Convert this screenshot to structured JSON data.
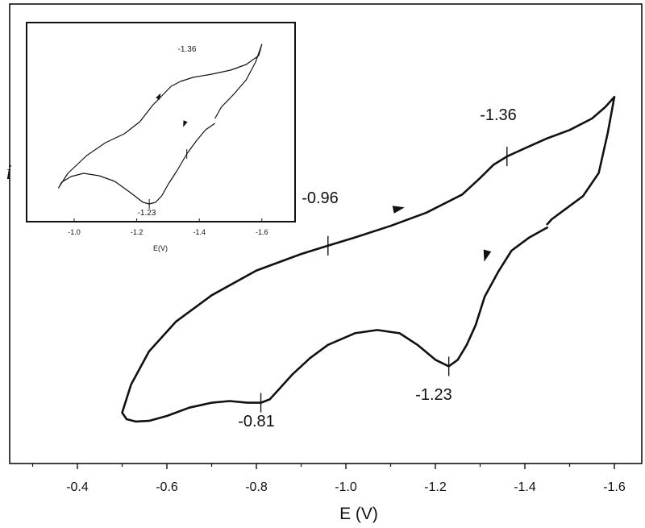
{
  "chart_data": [
    {
      "type": "line",
      "xlabel": "E (V)",
      "ylabel": "i",
      "x_axis_reversed": true,
      "xlim": [
        -0.25,
        -1.75
      ],
      "ylim": [
        0,
        100
      ],
      "y_ticks_shown": false,
      "x_ticks": [
        -0.4,
        -0.6,
        -0.8,
        -1.0,
        -1.2,
        -1.4,
        -1.6
      ],
      "x_tick_labels": [
        "-0.4",
        "-0.6",
        "-0.8",
        "-1.0",
        "-1.2",
        "-1.4",
        "-1.6"
      ],
      "line_color": "#111111",
      "series": [
        {
          "x": [
            -1.45,
            -1.41,
            -1.37,
            -1.34,
            -1.31,
            -1.29,
            -1.27,
            -1.25,
            -1.23,
            -1.2,
            -1.16,
            -1.12,
            -1.07,
            -1.02,
            -0.96,
            -0.92,
            -0.88,
            -0.85,
            -0.83,
            -0.81,
            -0.78,
            -0.74,
            -0.7,
            -0.65,
            -0.6,
            -0.56,
            -0.53,
            -0.51,
            -0.5,
            -0.52,
            -0.56,
            -0.62,
            -0.7,
            -0.8,
            -0.9,
            -0.96,
            -1.02,
            -1.1,
            -1.18,
            -1.26,
            -1.3,
            -1.33,
            -1.36,
            -1.4,
            -1.45,
            -1.5,
            -1.55,
            -1.58,
            -1.6,
            -1.585,
            -1.565,
            -1.53,
            -1.49,
            -1.46,
            -1.45
          ],
          "y": [
            57.5,
            54.5,
            50.5,
            44,
            36.5,
            28,
            22,
            17.5,
            15.5,
            17.5,
            22,
            25.5,
            26.5,
            25.5,
            22,
            18,
            13,
            8.5,
            5.5,
            4.5,
            4.5,
            5,
            4.5,
            3,
            0.5,
            -1,
            -1.2,
            -0.5,
            1.5,
            10,
            20,
            29,
            37,
            44.5,
            49.5,
            52,
            54.5,
            58,
            62,
            67.5,
            72.5,
            76.5,
            79,
            81.5,
            84.5,
            87,
            90.5,
            94,
            97,
            86,
            74,
            67,
            63,
            60,
            58.5
          ]
        }
      ],
      "annotations": [
        "-0.96",
        "-1.36",
        "-1.23",
        "-0.81"
      ]
    },
    {
      "type": "line",
      "xlabel": "E(V)",
      "x_axis_reversed": true,
      "xlim": [
        -0.78,
        -1.75
      ],
      "ylim": [
        0,
        100
      ],
      "x_ticks": [
        -1.0,
        -1.2,
        -1.4,
        -1.6
      ],
      "x_tick_labels": [
        "-1.0",
        "-1.2",
        "-1.4",
        "-1.6"
      ],
      "series": [
        {
          "x": [
            -1.45,
            -1.42,
            -1.39,
            -1.36,
            -1.33,
            -1.3,
            -1.28,
            -1.26,
            -1.24,
            -1.22,
            -1.18,
            -1.13,
            -1.08,
            -1.03,
            -0.99,
            -0.96,
            -0.95,
            -0.98,
            -1.04,
            -1.1,
            -1.16,
            -1.21,
            -1.25,
            -1.28,
            -1.31,
            -1.34,
            -1.38,
            -1.44,
            -1.5,
            -1.55,
            -1.59,
            -1.6,
            -1.58,
            -1.55,
            -1.51,
            -1.47,
            -1.45
          ],
          "y": [
            49,
            45,
            38,
            30,
            20,
            11,
            4,
            0,
            -1,
            0,
            6,
            13,
            16.5,
            18,
            16,
            12.5,
            9,
            18,
            29,
            37,
            42.5,
            50,
            60,
            66,
            72,
            75,
            77.5,
            79.5,
            82,
            85.5,
            91,
            98,
            87,
            76,
            67,
            59,
            52
          ]
        }
      ],
      "annotations": [
        "-1.36",
        "-1.23"
      ]
    }
  ]
}
